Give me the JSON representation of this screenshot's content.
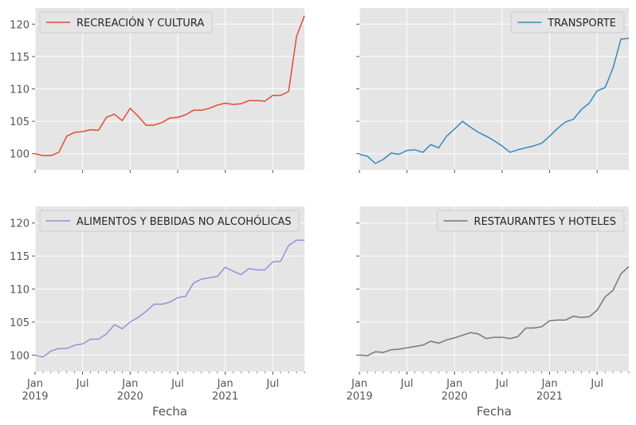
{
  "figure": {
    "xlabel": "Fecha",
    "background": "#ffffff",
    "axes_background": "#e5e5e5",
    "grid_color": "#ffffff"
  },
  "chart_data": [
    {
      "type": "line",
      "legend": "RECREACIÓN Y CULTURA",
      "legend_position": "top-left",
      "color": "#e24a33",
      "grid": true,
      "ylim": [
        97.5,
        122.5
      ],
      "yticks": [
        100,
        105,
        110,
        115,
        120
      ],
      "ytick_labels_visible": true,
      "xtick_labels_visible": false,
      "xlabel": "",
      "x_start": "2019-01",
      "x_end": "2021-11",
      "xticks": [
        {
          "date": "2019-01",
          "month": "Jan",
          "year": "2019"
        },
        {
          "date": "2019-07",
          "month": "Jul",
          "year": ""
        },
        {
          "date": "2020-01",
          "month": "Jan",
          "year": "2020"
        },
        {
          "date": "2020-07",
          "month": "Jul",
          "year": ""
        },
        {
          "date": "2021-01",
          "month": "Jan",
          "year": "2021"
        },
        {
          "date": "2021-07",
          "month": "Jul",
          "year": ""
        }
      ],
      "values": [
        100.0,
        99.7,
        99.7,
        100.2,
        102.7,
        103.3,
        103.4,
        103.7,
        103.6,
        105.6,
        106.1,
        105.1,
        107.0,
        105.8,
        104.4,
        104.4,
        104.8,
        105.5,
        105.6,
        106.0,
        106.7,
        106.7,
        107.0,
        107.5,
        107.8,
        107.6,
        107.7,
        108.2,
        108.2,
        108.1,
        109.0,
        109.0,
        109.6,
        118.1,
        121.3
      ]
    },
    {
      "type": "line",
      "legend": "TRANSPORTE",
      "legend_position": "top-right",
      "color": "#348abd",
      "grid": true,
      "ylim": [
        97.5,
        122.5
      ],
      "yticks": [
        100,
        105,
        110,
        115,
        120
      ],
      "ytick_labels_visible": false,
      "xtick_labels_visible": false,
      "xlabel": "",
      "x_start": "2019-01",
      "x_end": "2021-11",
      "xticks": [
        {
          "date": "2019-01",
          "month": "Jan",
          "year": "2019"
        },
        {
          "date": "2019-07",
          "month": "Jul",
          "year": ""
        },
        {
          "date": "2020-01",
          "month": "Jan",
          "year": "2020"
        },
        {
          "date": "2020-07",
          "month": "Jul",
          "year": ""
        },
        {
          "date": "2021-01",
          "month": "Jan",
          "year": "2021"
        },
        {
          "date": "2021-07",
          "month": "Jul",
          "year": ""
        }
      ],
      "values": [
        99.9,
        99.6,
        98.5,
        99.1,
        100.1,
        99.9,
        100.5,
        100.6,
        100.2,
        101.4,
        100.9,
        102.7,
        103.8,
        105.0,
        104.1,
        103.3,
        102.7,
        102.0,
        101.2,
        100.2,
        100.6,
        100.9,
        101.2,
        101.6,
        102.7,
        103.9,
        104.9,
        105.3,
        106.8,
        107.8,
        109.7,
        110.2,
        113.2,
        117.7,
        117.8
      ]
    },
    {
      "type": "line",
      "legend": "ALIMENTOS Y BEBIDAS NO ALCOHÓLICAS",
      "legend_position": "top-left",
      "color": "#988ed5",
      "grid": true,
      "ylim": [
        97.5,
        122.5
      ],
      "yticks": [
        100,
        105,
        110,
        115,
        120
      ],
      "ytick_labels_visible": true,
      "xtick_labels_visible": true,
      "xlabel": "Fecha",
      "x_start": "2019-01",
      "x_end": "2021-11",
      "xticks": [
        {
          "date": "2019-01",
          "month": "Jan",
          "year": "2019"
        },
        {
          "date": "2019-07",
          "month": "Jul",
          "year": ""
        },
        {
          "date": "2020-01",
          "month": "Jan",
          "year": "2020"
        },
        {
          "date": "2020-07",
          "month": "Jul",
          "year": ""
        },
        {
          "date": "2021-01",
          "month": "Jan",
          "year": "2021"
        },
        {
          "date": "2021-07",
          "month": "Jul",
          "year": ""
        }
      ],
      "values": [
        100.0,
        99.7,
        100.6,
        101.0,
        101.0,
        101.5,
        101.7,
        102.4,
        102.4,
        103.2,
        104.6,
        104.0,
        105.0,
        105.7,
        106.6,
        107.7,
        107.7,
        108.0,
        108.7,
        108.9,
        110.9,
        111.5,
        111.7,
        111.9,
        113.3,
        112.7,
        112.2,
        113.1,
        112.9,
        112.9,
        114.1,
        114.2,
        116.6,
        117.4,
        117.4
      ]
    },
    {
      "type": "line",
      "legend": "RESTAURANTES Y HOTELES",
      "legend_position": "top-right",
      "color": "#777777",
      "grid": true,
      "ylim": [
        97.5,
        122.5
      ],
      "yticks": [
        100,
        105,
        110,
        115,
        120
      ],
      "ytick_labels_visible": false,
      "xtick_labels_visible": true,
      "xlabel": "Fecha",
      "x_start": "2019-01",
      "x_end": "2021-11",
      "xticks": [
        {
          "date": "2019-01",
          "month": "Jan",
          "year": "2019"
        },
        {
          "date": "2019-07",
          "month": "Jul",
          "year": ""
        },
        {
          "date": "2020-01",
          "month": "Jan",
          "year": "2020"
        },
        {
          "date": "2020-07",
          "month": "Jul",
          "year": ""
        },
        {
          "date": "2021-01",
          "month": "Jan",
          "year": "2021"
        },
        {
          "date": "2021-07",
          "month": "Jul",
          "year": ""
        }
      ],
      "values": [
        100.0,
        99.9,
        100.5,
        100.4,
        100.8,
        100.9,
        101.1,
        101.3,
        101.5,
        102.1,
        101.8,
        102.3,
        102.6,
        103.0,
        103.4,
        103.2,
        102.5,
        102.7,
        102.7,
        102.5,
        102.8,
        104.1,
        104.1,
        104.3,
        105.2,
        105.3,
        105.3,
        105.9,
        105.7,
        105.8,
        106.8,
        108.8,
        109.8,
        112.3,
        113.4
      ]
    }
  ]
}
